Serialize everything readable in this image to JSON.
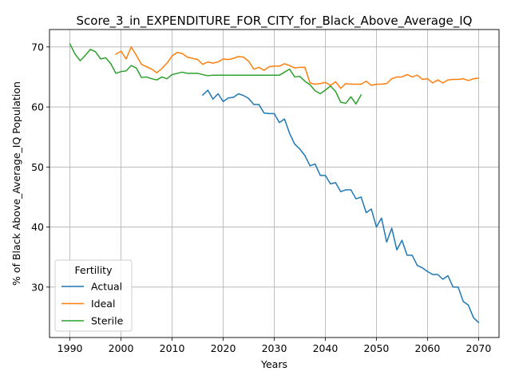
{
  "chart_data": {
    "type": "line",
    "title": "Score_3_in_EXPENDITURE_FOR_CITY_for_Black_Above_Average_IQ",
    "xlabel": "Years",
    "ylabel": "% of Black Above_Average_IQ Population",
    "xlim": [
      1986,
      2074
    ],
    "ylim": [
      21.6,
      72.9
    ],
    "x_ticks": [
      1990,
      2000,
      2010,
      2020,
      2030,
      2040,
      2050,
      2060,
      2070
    ],
    "y_ticks": [
      30,
      40,
      50,
      60,
      70
    ],
    "grid": true,
    "legend": {
      "title": "Fertility",
      "placement": "lower-left"
    },
    "series": [
      {
        "name": "Actual",
        "color": "#1f77b4",
        "x": [
          2016,
          2017,
          2018,
          2019,
          2020,
          2021,
          2022,
          2023,
          2024,
          2025,
          2026,
          2027,
          2028,
          2029,
          2030,
          2031,
          2032,
          2033,
          2034,
          2035,
          2036,
          2037,
          2038,
          2039,
          2040,
          2041,
          2042,
          2043,
          2044,
          2045,
          2046,
          2047,
          2048,
          2049,
          2050,
          2051,
          2052,
          2053,
          2054,
          2055,
          2056,
          2057,
          2058,
          2059,
          2060,
          2061,
          2062,
          2063,
          2064,
          2065,
          2066,
          2067,
          2068,
          2069,
          2070
        ],
        "y": [
          62.0,
          62.8,
          61.3,
          62.2,
          60.9,
          61.5,
          61.6,
          62.2,
          61.9,
          61.4,
          60.4,
          60.4,
          59.0,
          58.9,
          58.9,
          57.4,
          58.0,
          55.6,
          53.8,
          53.0,
          51.9,
          50.2,
          50.5,
          48.6,
          48.6,
          47.2,
          47.4,
          45.9,
          46.2,
          46.2,
          44.7,
          45.0,
          42.4,
          43.0,
          40.0,
          41.5,
          37.5,
          39.8,
          36.2,
          37.8,
          35.3,
          35.3,
          33.6,
          33.2,
          32.6,
          32.1,
          32.1,
          31.3,
          31.9,
          30.0,
          30.0,
          27.6,
          27.0,
          24.9,
          24.1
        ]
      },
      {
        "name": "Ideal",
        "color": "#ff7f0e",
        "x": [
          1999,
          2000,
          2001,
          2002,
          2003,
          2004,
          2005,
          2006,
          2007,
          2008,
          2009,
          2010,
          2011,
          2012,
          2013,
          2014,
          2015,
          2016,
          2017,
          2018,
          2019,
          2020,
          2021,
          2022,
          2023,
          2024,
          2025,
          2026,
          2027,
          2028,
          2029,
          2030,
          2031,
          2032,
          2033,
          2034,
          2035,
          2036,
          2037,
          2038,
          2039,
          2040,
          2041,
          2042,
          2043,
          2044,
          2045,
          2046,
          2047,
          2048,
          2049,
          2050,
          2051,
          2052,
          2053,
          2054,
          2055,
          2056,
          2057,
          2058,
          2059,
          2060,
          2061,
          2062,
          2063,
          2064,
          2065,
          2066,
          2067,
          2068,
          2069,
          2070
        ],
        "y": [
          68.8,
          69.3,
          68.0,
          70.0,
          68.6,
          67.1,
          66.7,
          66.3,
          65.7,
          66.4,
          67.3,
          68.5,
          69.1,
          68.9,
          68.3,
          68.1,
          67.9,
          67.1,
          67.5,
          67.3,
          67.5,
          68.0,
          67.9,
          68.1,
          68.4,
          68.3,
          67.6,
          66.3,
          66.6,
          66.1,
          66.7,
          66.8,
          66.8,
          67.2,
          66.9,
          66.5,
          66.6,
          66.6,
          64.0,
          63.8,
          63.9,
          64.1,
          63.6,
          64.2,
          63.1,
          63.9,
          63.8,
          63.8,
          63.8,
          64.3,
          63.6,
          63.8,
          63.8,
          63.9,
          64.7,
          65.0,
          65.0,
          65.4,
          65.0,
          65.3,
          64.6,
          64.7,
          64.0,
          64.5,
          64.0,
          64.5,
          64.6,
          64.6,
          64.7,
          64.4,
          64.7,
          64.8
        ]
      },
      {
        "name": "Sterile",
        "color": "#2ca02c",
        "x": [
          1990,
          1991,
          1992,
          1993,
          1994,
          1995,
          1996,
          1997,
          1998,
          1999,
          2000,
          2001,
          2002,
          2003,
          2004,
          2005,
          2006,
          2007,
          2008,
          2009,
          2010,
          2011,
          2012,
          2013,
          2014,
          2015,
          2016,
          2017,
          2018,
          2019,
          2020,
          2021,
          2022,
          2023,
          2024,
          2025,
          2026,
          2027,
          2028,
          2029,
          2030,
          2031,
          2032,
          2033,
          2034,
          2035,
          2036,
          2037,
          2038,
          2039,
          2040,
          2041,
          2042,
          2043,
          2044,
          2045,
          2046,
          2047
        ],
        "y": [
          70.5,
          68.8,
          67.7,
          68.6,
          69.6,
          69.2,
          68.0,
          68.2,
          67.2,
          65.6,
          65.9,
          66.0,
          66.9,
          66.5,
          64.9,
          65.0,
          64.7,
          64.5,
          65.0,
          64.7,
          65.4,
          65.6,
          65.8,
          65.6,
          65.6,
          65.6,
          65.4,
          65.2,
          65.3,
          65.3,
          65.3,
          65.3,
          65.3,
          65.3,
          65.3,
          65.3,
          65.3,
          65.3,
          65.3,
          65.3,
          65.3,
          65.3,
          65.8,
          66.3,
          65.0,
          65.1,
          64.3,
          63.7,
          62.7,
          62.2,
          62.8,
          63.5,
          62.6,
          60.8,
          60.6,
          61.7,
          60.5,
          62.0
        ]
      }
    ]
  }
}
